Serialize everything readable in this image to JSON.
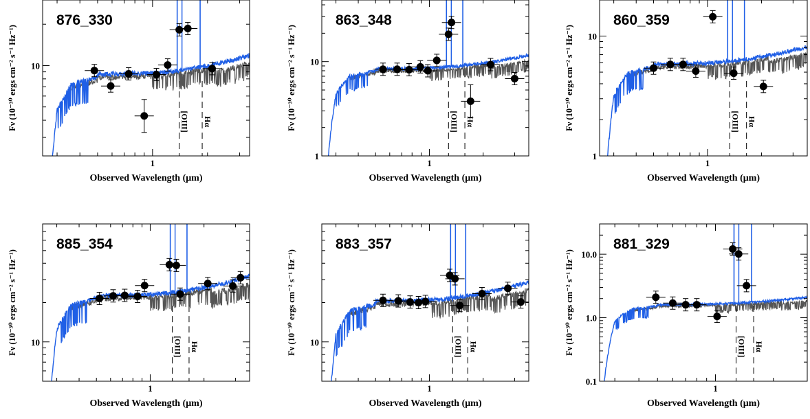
{
  "chart_data": [
    {
      "type": "scatter",
      "title": "876_330",
      "xlabel": "Observed Wavelength (μm)",
      "ylabel": "Fν (10⁻³⁰ ergs cm⁻² s⁻¹ Hz⁻¹)",
      "xlim": [
        0.25,
        3.4
      ],
      "ylim": [
        2.2,
        30
      ],
      "log_x": true,
      "log_y": true,
      "x_ticks": [
        1
      ],
      "y_ticks": [
        10
      ],
      "points": [
        {
          "x": 0.48,
          "y": 9.2
        },
        {
          "x": 0.59,
          "y": 7.1
        },
        {
          "x": 0.74,
          "y": 8.7
        },
        {
          "x": 0.9,
          "y": 4.3
        },
        {
          "x": 1.05,
          "y": 8.6
        },
        {
          "x": 1.21,
          "y": 10.1
        },
        {
          "x": 1.4,
          "y": 18.2
        },
        {
          "x": 1.56,
          "y": 18.6
        },
        {
          "x": 2.12,
          "y": 9.5
        }
      ],
      "line_markers": [
        {
          "x": 1.4,
          "label": "[OIII]"
        },
        {
          "x": 1.87,
          "label": "Hα"
        }
      ],
      "series": [
        {
          "color": "#1f5fe6"
        },
        {
          "color": "#555555"
        }
      ]
    },
    {
      "type": "scatter",
      "title": "863_348",
      "xlabel": "Observed Wavelength (μm)",
      "ylabel": "Fν (10⁻³⁰ ergs cm⁻² s⁻¹ Hz⁻¹)",
      "xlim": [
        0.25,
        3.6
      ],
      "ylim": [
        1,
        45
      ],
      "log_x": true,
      "log_y": true,
      "x_ticks": [
        1
      ],
      "y_ticks": [
        1,
        10
      ],
      "points": [
        {
          "x": 0.55,
          "y": 8.3
        },
        {
          "x": 0.66,
          "y": 8.3
        },
        {
          "x": 0.77,
          "y": 8.2
        },
        {
          "x": 0.89,
          "y": 8.8
        },
        {
          "x": 0.98,
          "y": 8.0
        },
        {
          "x": 1.1,
          "y": 10.3
        },
        {
          "x": 1.28,
          "y": 19.5
        },
        {
          "x": 1.33,
          "y": 26
        },
        {
          "x": 1.7,
          "y": 3.8
        },
        {
          "x": 2.2,
          "y": 9.3
        },
        {
          "x": 3.0,
          "y": 6.6
        }
      ],
      "line_markers": [
        {
          "x": 1.28,
          "label": "[OIII]"
        },
        {
          "x": 1.58,
          "label": "Hα"
        }
      ],
      "series": [
        {
          "color": "#1f5fe6"
        },
        {
          "color": "#555555"
        }
      ]
    },
    {
      "type": "scatter",
      "title": "860_359",
      "xlabel": "Observed Wavelength (μm)",
      "ylabel": "Fν (10⁻³⁰ ergs cm⁻² s⁻¹ Hz⁻¹)",
      "xlim": [
        0.25,
        3.6
      ],
      "ylim": [
        1,
        20
      ],
      "log_x": true,
      "log_y": true,
      "x_ticks": [
        1
      ],
      "y_ticks": [
        1,
        10
      ],
      "points": [
        {
          "x": 0.5,
          "y": 5.4
        },
        {
          "x": 0.62,
          "y": 5.8
        },
        {
          "x": 0.73,
          "y": 5.8
        },
        {
          "x": 0.86,
          "y": 5.1
        },
        {
          "x": 1.07,
          "y": 14.5
        },
        {
          "x": 1.4,
          "y": 4.9
        },
        {
          "x": 2.05,
          "y": 3.8
        }
      ],
      "line_markers": [
        {
          "x": 1.33,
          "label": "[OIII]"
        },
        {
          "x": 1.65,
          "label": "Hα"
        }
      ],
      "series": [
        {
          "color": "#1f5fe6"
        },
        {
          "color": "#555555"
        }
      ]
    },
    {
      "type": "scatter",
      "title": "885_354",
      "xlabel": "Observed Wavelength (μm)",
      "ylabel": "Fν (10⁻³⁰ ergs cm⁻² s⁻¹ Hz⁻¹)",
      "xlim": [
        0.25,
        3.6
      ],
      "ylim": [
        5,
        80
      ],
      "log_x": true,
      "log_y": true,
      "x_ticks": [
        1
      ],
      "y_ticks": [
        10
      ],
      "points": [
        {
          "x": 0.52,
          "y": 21.5
        },
        {
          "x": 0.62,
          "y": 22.5
        },
        {
          "x": 0.72,
          "y": 22.7
        },
        {
          "x": 0.85,
          "y": 22.3
        },
        {
          "x": 0.93,
          "y": 27
        },
        {
          "x": 1.28,
          "y": 39
        },
        {
          "x": 1.4,
          "y": 38.5
        },
        {
          "x": 1.47,
          "y": 23.2
        },
        {
          "x": 2.1,
          "y": 28
        },
        {
          "x": 2.9,
          "y": 26.8
        },
        {
          "x": 3.2,
          "y": 31
        }
      ],
      "line_markers": [
        {
          "x": 1.33,
          "label": "[OIII]"
        },
        {
          "x": 1.65,
          "label": "Hα"
        }
      ],
      "series": [
        {
          "color": "#1f5fe6"
        },
        {
          "color": "#555555"
        }
      ]
    },
    {
      "type": "scatter",
      "title": "883_357",
      "xlabel": "Observed Wavelength (μm)",
      "ylabel": "Fν (10⁻³⁰ ergs cm⁻² s⁻¹ Hz⁻¹)",
      "xlim": [
        0.25,
        3.6
      ],
      "ylim": [
        5,
        80
      ],
      "log_x": true,
      "log_y": true,
      "x_ticks": [
        1
      ],
      "y_ticks": [
        10
      ],
      "points": [
        {
          "x": 0.55,
          "y": 20.8
        },
        {
          "x": 0.67,
          "y": 20.6
        },
        {
          "x": 0.78,
          "y": 20.2
        },
        {
          "x": 0.87,
          "y": 20.0
        },
        {
          "x": 0.95,
          "y": 20.4
        },
        {
          "x": 1.3,
          "y": 32.3
        },
        {
          "x": 1.39,
          "y": 30.4
        },
        {
          "x": 1.48,
          "y": 19.0
        },
        {
          "x": 1.97,
          "y": 23.4
        },
        {
          "x": 2.75,
          "y": 25.7
        },
        {
          "x": 3.25,
          "y": 20.2
        }
      ],
      "line_markers": [
        {
          "x": 1.35,
          "label": "[OIII]"
        },
        {
          "x": 1.64,
          "label": "Hα"
        }
      ],
      "series": [
        {
          "color": "#1f5fe6"
        },
        {
          "color": "#555555"
        }
      ]
    },
    {
      "type": "scatter",
      "title": "881_329",
      "xlabel": "Observed Wavelength (μm)",
      "ylabel": "Fν (10⁻³⁰ ergs cm⁻² s⁻¹ Hz⁻¹)",
      "xlim": [
        0.25,
        3.0
      ],
      "ylim": [
        0.1,
        30
      ],
      "log_x": true,
      "log_y": true,
      "x_ticks": [
        1
      ],
      "y_ticks": [
        0.1,
        1.0,
        10.0
      ],
      "y_tick_labels": [
        "0.1",
        "1.0",
        "10.0"
      ],
      "points": [
        {
          "x": 0.49,
          "y": 2.1
        },
        {
          "x": 0.6,
          "y": 1.7
        },
        {
          "x": 0.7,
          "y": 1.6
        },
        {
          "x": 0.8,
          "y": 1.6
        },
        {
          "x": 1.02,
          "y": 1.05
        },
        {
          "x": 1.23,
          "y": 12.1
        },
        {
          "x": 1.32,
          "y": 10.1
        },
        {
          "x": 1.45,
          "y": 3.2
        }
      ],
      "line_markers": [
        {
          "x": 1.28,
          "label": "[OIII]"
        },
        {
          "x": 1.58,
          "label": "Hα"
        }
      ],
      "series": [
        {
          "color": "#1f5fe6"
        },
        {
          "color": "#555555"
        }
      ]
    }
  ]
}
